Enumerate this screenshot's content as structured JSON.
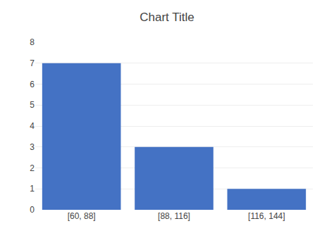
{
  "chart_data": {
    "type": "bar",
    "title": "Chart Title",
    "categories": [
      "[60, 88]",
      "[88, 116]",
      "[116, 144]"
    ],
    "values": [
      7,
      3,
      1
    ],
    "color": "#4472C4",
    "ylim": [
      0,
      8
    ],
    "yticks": [
      0,
      1,
      2,
      3,
      4,
      5,
      6,
      7,
      8
    ],
    "grid": true
  }
}
